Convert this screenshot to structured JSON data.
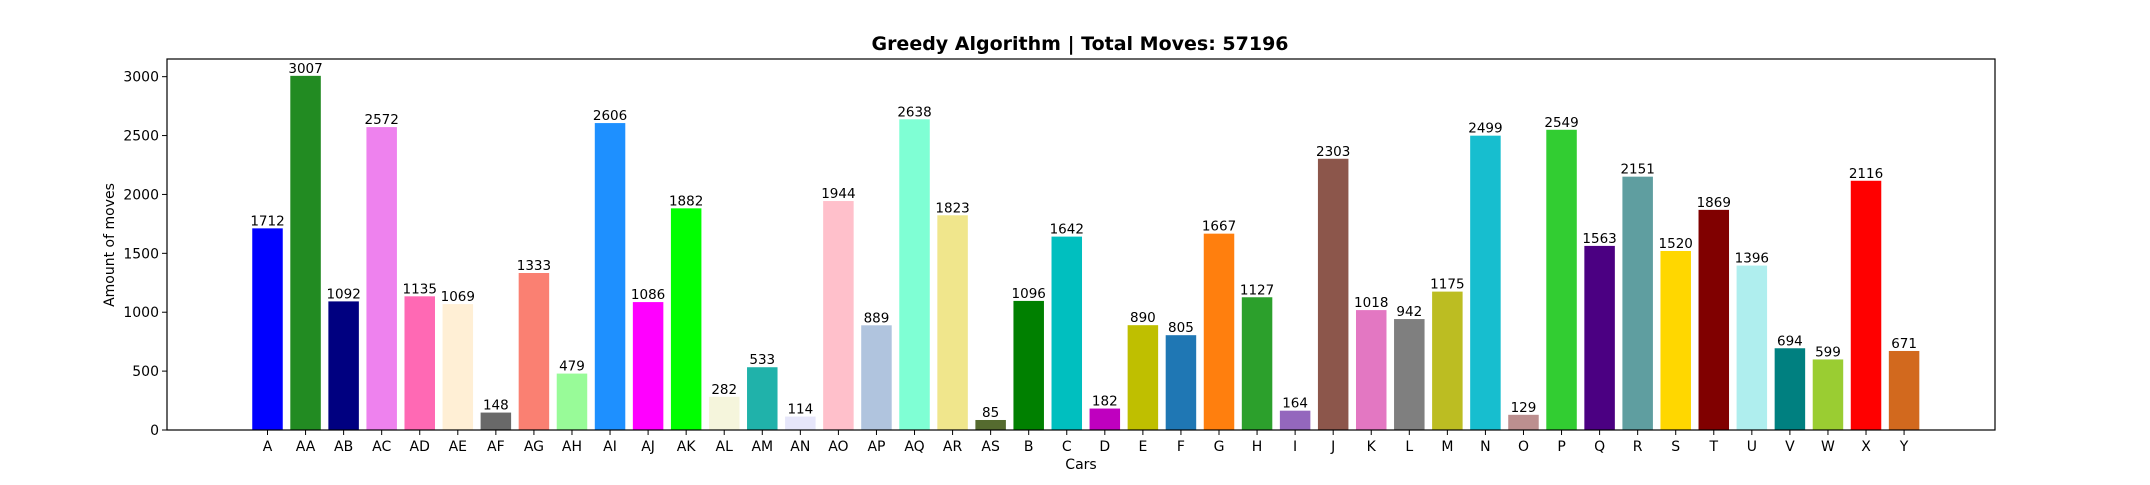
{
  "chart_data": {
    "type": "bar",
    "title": "Greedy Algorithm | Total Moves: 57196",
    "xlabel": "Cars",
    "ylabel": "Amount of moves",
    "ylim": [
      0,
      3150
    ],
    "yticks": [
      0,
      500,
      1000,
      1500,
      2000,
      2500,
      3000
    ],
    "grid": false,
    "categories": [
      "A",
      "AA",
      "AB",
      "AC",
      "AD",
      "AE",
      "AF",
      "AG",
      "AH",
      "AI",
      "AJ",
      "AK",
      "AL",
      "AM",
      "AN",
      "AO",
      "AP",
      "AQ",
      "AR",
      "AS",
      "B",
      "C",
      "D",
      "E",
      "F",
      "G",
      "H",
      "I",
      "J",
      "K",
      "L",
      "M",
      "N",
      "O",
      "P",
      "Q",
      "R",
      "S",
      "T",
      "U",
      "V",
      "W",
      "X",
      "Y"
    ],
    "values": [
      1712,
      3007,
      1092,
      2572,
      1135,
      1069,
      148,
      1333,
      479,
      2606,
      1086,
      1882,
      282,
      533,
      114,
      1944,
      889,
      2638,
      1823,
      85,
      1096,
      1642,
      182,
      890,
      805,
      1667,
      1127,
      164,
      2303,
      1018,
      942,
      1175,
      2499,
      129,
      2549,
      1563,
      2151,
      1520,
      1869,
      1396,
      694,
      599,
      2116,
      671
    ],
    "colors": [
      "#0000ff",
      "#228b22",
      "#000080",
      "#ee82ee",
      "#ff69b4",
      "#ffefd5",
      "#696969",
      "#fa8072",
      "#98fb98",
      "#1e90ff",
      "#ff00ff",
      "#00ff00",
      "#f5f5dc",
      "#20b2aa",
      "#e6e6fa",
      "#ffc0cb",
      "#b0c4de",
      "#7fffd4",
      "#f0e68c",
      "#556b2f",
      "#008000",
      "#00bfbf",
      "#bf00bf",
      "#bfbf00",
      "#1f77b4",
      "#ff7f0e",
      "#2ca02c",
      "#9467bd",
      "#8c564b",
      "#e377c2",
      "#7f7f7f",
      "#bcbd22",
      "#17becf",
      "#bc8f8f",
      "#32cd32",
      "#4b0082",
      "#5f9ea0",
      "#ffd700",
      "#800000",
      "#afeeee",
      "#008080",
      "#9acd32",
      "#ff0000",
      "#d2691e"
    ]
  }
}
